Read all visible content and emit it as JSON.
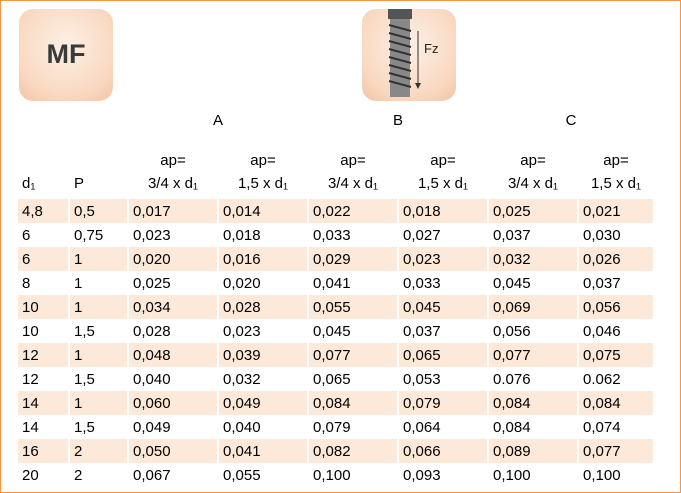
{
  "badge": "MF",
  "icon_label": "Fz",
  "table": {
    "groups": [
      "A",
      "B",
      "C"
    ],
    "header": [
      [
        "d₁"
      ],
      [
        "P"
      ],
      [
        "ap=",
        "3/4 x d₁"
      ],
      [
        "ap=",
        "1,5 x d₁"
      ],
      [
        "ap=",
        "3/4 x d₁"
      ],
      [
        "ap=",
        "1,5 x d₁"
      ],
      [
        "ap=",
        "3/4 x d₁"
      ],
      [
        "ap=",
        "1,5 x d₁"
      ]
    ],
    "rows": [
      [
        "4,8",
        "0,5",
        "0,017",
        "0,014",
        "0,022",
        "0,018",
        "0,025",
        "0,021"
      ],
      [
        "6",
        "0,75",
        "0,023",
        "0,018",
        "0,033",
        "0,027",
        "0,037",
        "0,030"
      ],
      [
        "6",
        "1",
        "0,020",
        "0,016",
        "0,029",
        "0,023",
        "0,032",
        "0,026"
      ],
      [
        "8",
        "1",
        "0,025",
        "0,020",
        "0,041",
        "0,033",
        "0,045",
        "0,037"
      ],
      [
        "10",
        "1",
        "0,034",
        "0,028",
        "0,055",
        "0,045",
        "0,069",
        "0,056"
      ],
      [
        "10",
        "1,5",
        "0,028",
        "0,023",
        "0,045",
        "0,037",
        "0,056",
        "0,046"
      ],
      [
        "12",
        "1",
        "0,048",
        "0,039",
        "0,077",
        "0,065",
        "0,077",
        "0,075"
      ],
      [
        "12",
        "1,5",
        "0,040",
        "0,032",
        "0,065",
        "0,053",
        "0.076",
        "0.062"
      ],
      [
        "14",
        "1",
        "0,060",
        "0,049",
        "0,084",
        "0,079",
        "0,084",
        "0,084"
      ],
      [
        "14",
        "1,5",
        "0,049",
        "0,040",
        "0,079",
        "0,064",
        "0,084",
        "0,074"
      ],
      [
        "16",
        "2",
        "0,050",
        "0,041",
        "0,082",
        "0,066",
        "0,089",
        "0,077"
      ],
      [
        "20",
        "2",
        "0,067",
        "0,055",
        "0,100",
        "0,093",
        "0,100",
        "0,100"
      ]
    ]
  }
}
